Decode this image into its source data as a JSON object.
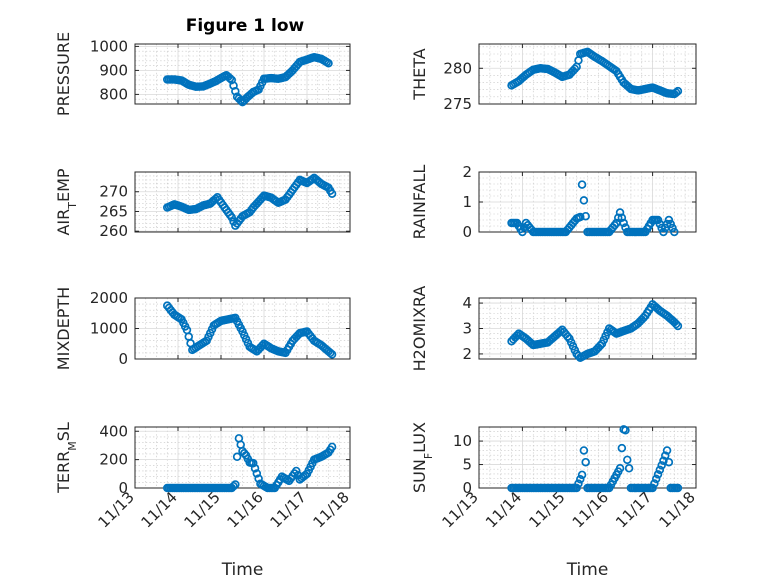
{
  "figure_title": "Figure 1 low",
  "colors": {
    "marker": "#0072BD",
    "axis": "#262626",
    "grid": "#d9d9d9"
  },
  "chart_data": [
    {
      "id": "pressure",
      "type": "scatter",
      "ylabel": "PRESSURE",
      "ylim": [
        760,
        1010
      ],
      "yticks": [
        800,
        900,
        1000
      ],
      "ytick_labels": [
        "800",
        "900",
        "1000"
      ],
      "x": [
        "11/13 18:00",
        "11/13 22:00",
        "11/14 02:00",
        "11/14 06:00",
        "11/14 10:00",
        "11/14 14:00",
        "11/14 18:00",
        "11/14 21:00",
        "11/15 00:00",
        "11/15 03:00",
        "11/15 06:00",
        "11/15 09:00",
        "11/15 12:00",
        "11/15 15:00",
        "11/15 18:00",
        "11/15 21:00",
        "11/16 00:00",
        "11/16 04:00",
        "11/16 08:00",
        "11/16 12:00",
        "11/16 16:00",
        "11/16 20:00",
        "11/17 00:00",
        "11/17 04:00",
        "11/17 08:00",
        "11/17 12:00"
      ],
      "y": [
        862,
        862,
        858,
        840,
        832,
        833,
        845,
        855,
        868,
        880,
        860,
        790,
        768,
        790,
        810,
        820,
        865,
        868,
        865,
        872,
        900,
        935,
        945,
        955,
        948,
        930
      ]
    },
    {
      "id": "theta",
      "type": "scatter",
      "ylabel": "THETA",
      "ylim": [
        275,
        283.4
      ],
      "yticks": [
        275,
        280
      ],
      "ytick_labels": [
        "275",
        "280"
      ],
      "x": [
        "11/13 18:00",
        "11/13 22:00",
        "11/14 02:00",
        "11/14 06:00",
        "11/14 10:00",
        "11/14 14:00",
        "11/14 18:00",
        "11/14 22:00",
        "11/15 02:00",
        "11/15 06:00",
        "11/15 08:00",
        "11/15 12:00",
        "11/15 16:00",
        "11/15 20:00",
        "11/16 00:00",
        "11/16 04:00",
        "11/16 08:00",
        "11/16 12:00",
        "11/16 16:00",
        "11/16 20:00",
        "11/17 00:00",
        "11/17 04:00",
        "11/17 08:00",
        "11/17 12:00",
        "11/17 14:00"
      ],
      "y": [
        277.6,
        278.2,
        279.1,
        279.8,
        280.0,
        279.9,
        279.4,
        278.8,
        279.1,
        280.2,
        282.0,
        282.3,
        281.6,
        281.0,
        280.3,
        279.6,
        278.0,
        277.1,
        276.9,
        277.1,
        277.3,
        276.9,
        276.5,
        276.4,
        276.8
      ]
    },
    {
      "id": "air_temp",
      "type": "scatter",
      "ylabel": "AIR_TEMP",
      "ylim": [
        259.8,
        275
      ],
      "yticks": [
        260,
        265,
        270
      ],
      "ytick_labels": [
        "260",
        "265",
        "270"
      ],
      "x": [
        "11/13 18:00",
        "11/13 22:00",
        "11/14 02:00",
        "11/14 06:00",
        "11/14 10:00",
        "11/14 14:00",
        "11/14 18:00",
        "11/14 22:00",
        "11/15 02:00",
        "11/15 06:00",
        "11/15 08:00",
        "11/15 12:00",
        "11/15 16:00",
        "11/15 18:00",
        "11/16 00:00",
        "11/16 04:00",
        "11/16 08:00",
        "11/16 12:00",
        "11/16 16:00",
        "11/16 20:00",
        "11/17 00:00",
        "11/17 04:00",
        "11/17 08:00",
        "11/17 12:00",
        "11/17 14:00"
      ],
      "y": [
        266.0,
        266.8,
        266.2,
        265.4,
        265.6,
        266.5,
        267.0,
        268.6,
        266.0,
        263.5,
        261.4,
        263.8,
        264.8,
        266.0,
        269.0,
        268.5,
        267.2,
        268.0,
        270.5,
        273.0,
        272.2,
        273.5,
        272.0,
        271.0,
        269.5
      ]
    },
    {
      "id": "rainfall",
      "type": "scatter",
      "ylabel": "RAINFALL",
      "ylim": [
        0,
        2
      ],
      "yticks": [
        0,
        1,
        2
      ],
      "ytick_labels": [
        "0",
        "1",
        "2"
      ],
      "x": [
        "11/13 18:00",
        "11/13 21:00",
        "11/14 00:00",
        "11/14 02:00",
        "11/14 06:00",
        "11/14 12:00",
        "11/14 18:00",
        "11/15 00:00",
        "11/15 04:00",
        "11/15 06:00",
        "11/15 08:00",
        "11/15 09:00",
        "11/15 12:00",
        "11/15 18:00",
        "11/16 00:00",
        "11/16 04:00",
        "11/16 06:00",
        "11/16 08:00",
        "11/16 10:00",
        "11/16 14:00",
        "11/16 20:00",
        "11/17 00:00",
        "11/17 03:00",
        "11/17 06:00",
        "11/17 09:00",
        "11/17 12:00"
      ],
      "y": [
        0.3,
        0.3,
        0,
        0.3,
        0,
        0,
        0,
        0,
        0.3,
        0.45,
        0.5,
        1.58,
        0,
        0,
        0,
        0.3,
        0.65,
        0.3,
        0,
        0,
        0,
        0.4,
        0.4,
        0,
        0.4,
        0
      ]
    },
    {
      "id": "mixdepth",
      "type": "scatter",
      "ylabel": "MIXDEPTH",
      "ylim": [
        0,
        2000
      ],
      "yticks": [
        0,
        1000,
        2000
      ],
      "ytick_labels": [
        "0",
        "1000",
        "2000"
      ],
      "x": [
        "11/13 18:00",
        "11/13 22:00",
        "11/14 02:00",
        "11/14 05:00",
        "11/14 08:00",
        "11/14 12:00",
        "11/14 16:00",
        "11/14 20:00",
        "11/15 00:00",
        "11/15 04:00",
        "11/15 08:00",
        "11/15 12:00",
        "11/15 16:00",
        "11/15 20:00",
        "11/16 00:00",
        "11/16 04:00",
        "11/16 08:00",
        "11/16 12:00",
        "11/16 16:00",
        "11/16 20:00",
        "11/17 00:00",
        "11/17 04:00",
        "11/17 08:00",
        "11/17 12:00",
        "11/17 14:00"
      ],
      "y": [
        1750,
        1450,
        1300,
        950,
        300,
        450,
        600,
        1100,
        1250,
        1300,
        1350,
        900,
        400,
        250,
        500,
        350,
        250,
        200,
        600,
        850,
        900,
        600,
        450,
        250,
        150
      ]
    },
    {
      "id": "h2omixra",
      "type": "scatter",
      "ylabel": "H2OMIXRA",
      "ylim": [
        1.8,
        4.2
      ],
      "yticks": [
        2,
        3,
        4
      ],
      "ytick_labels": [
        "2",
        "3",
        "4"
      ],
      "x": [
        "11/13 18:00",
        "11/13 22:00",
        "11/14 02:00",
        "11/14 06:00",
        "11/14 10:00",
        "11/14 14:00",
        "11/14 18:00",
        "11/14 22:00",
        "11/15 02:00",
        "11/15 06:00",
        "11/15 08:00",
        "11/15 12:00",
        "11/15 16:00",
        "11/15 20:00",
        "11/16 00:00",
        "11/16 04:00",
        "11/16 08:00",
        "11/16 12:00",
        "11/16 16:00",
        "11/16 20:00",
        "11/17 00:00",
        "11/17 04:00",
        "11/17 08:00",
        "11/17 12:00",
        "11/17 14:00"
      ],
      "y": [
        2.5,
        2.8,
        2.6,
        2.35,
        2.4,
        2.45,
        2.7,
        2.95,
        2.6,
        2.0,
        1.85,
        2.0,
        2.1,
        2.4,
        3.0,
        2.8,
        2.9,
        3.0,
        3.2,
        3.5,
        3.95,
        3.7,
        3.5,
        3.25,
        3.1
      ]
    },
    {
      "id": "terr_msl",
      "type": "scatter",
      "ylabel": "TERR_MSL",
      "ylim": [
        0,
        430
      ],
      "yticks": [
        0,
        200,
        400
      ],
      "ytick_labels": [
        "0",
        "200",
        "400"
      ],
      "x": [
        "11/13 18:00",
        "11/14 00:00",
        "11/14 06:00",
        "11/14 12:00",
        "11/14 18:00",
        "11/15 00:00",
        "11/15 06:00",
        "11/15 08:00",
        "11/15 09:00",
        "11/15 10:00",
        "11/15 12:00",
        "11/15 14:00",
        "11/15 16:00",
        "11/15 18:00",
        "11/15 22:00",
        "11/16 02:00",
        "11/16 06:00",
        "11/16 10:00",
        "11/16 14:00",
        "11/16 18:00",
        "11/16 20:00",
        "11/17 00:00",
        "11/17 04:00",
        "11/17 08:00",
        "11/17 12:00",
        "11/17 14:00"
      ],
      "y": [
        0,
        0,
        0,
        0,
        0,
        0,
        0,
        25,
        220,
        350,
        260,
        230,
        180,
        175,
        30,
        0,
        0,
        80,
        50,
        120,
        60,
        100,
        200,
        220,
        250,
        290
      ]
    },
    {
      "id": "sun_flux",
      "type": "scatter",
      "ylabel": "SUN_FLUX",
      "ylim": [
        0,
        13
      ],
      "yticks": [
        0,
        5,
        10
      ],
      "ytick_labels": [
        "0",
        "5",
        "10"
      ],
      "x": [
        "11/13 18:00",
        "11/14 00:00",
        "11/14 06:00",
        "11/14 12:00",
        "11/14 18:00",
        "11/15 00:00",
        "11/15 06:00",
        "11/15 09:00",
        "11/15 10:00",
        "11/15 11:00",
        "11/15 12:00",
        "11/15 14:00",
        "11/15 18:00",
        "11/16 00:00",
        "11/16 06:00",
        "11/16 07:00",
        "11/16 08:00",
        "11/16 09:00",
        "11/16 10:00",
        "11/16 11:00",
        "11/16 12:00",
        "11/16 14:00",
        "11/16 18:00",
        "11/17 00:00",
        "11/17 06:00",
        "11/17 08:00",
        "11/17 09:00",
        "11/17 10:00",
        "11/17 12:00",
        "11/17 14:00"
      ],
      "y": [
        0,
        0,
        0,
        0,
        0,
        0,
        0,
        2.8,
        8,
        5.5,
        0,
        0,
        0,
        0,
        4.2,
        8.5,
        12.5,
        12.3,
        6,
        4.2,
        0,
        0,
        0,
        0,
        5.8,
        8,
        5.5,
        0,
        0,
        0
      ]
    }
  ],
  "x_axis": {
    "xlim": [
      "11/13 00:00",
      "11/18 00:00"
    ],
    "ticks": [
      "11/13",
      "11/14",
      "11/15",
      "11/16",
      "11/17",
      "11/18"
    ],
    "label": "Time"
  }
}
